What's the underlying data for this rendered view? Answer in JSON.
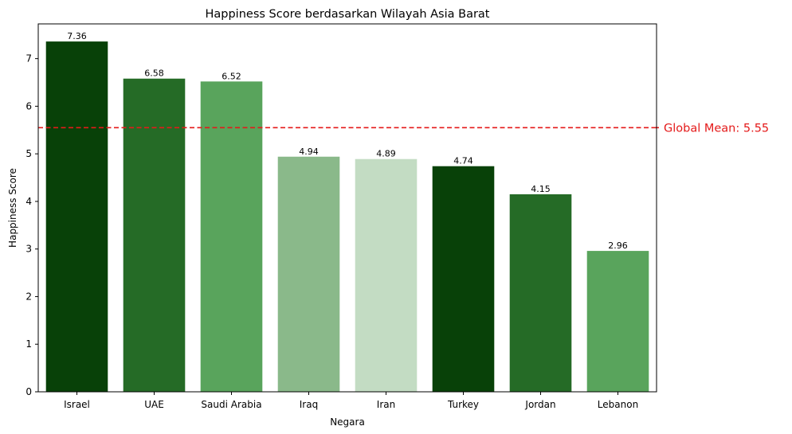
{
  "chart_data": {
    "type": "bar",
    "title": "Happiness Score berdasarkan Wilayah Asia Barat",
    "xlabel": "Negara",
    "ylabel": "Happiness Score",
    "categories": [
      "Israel",
      "UAE",
      "Saudi Arabia",
      "Iraq",
      "Iran",
      "Turkey",
      "Jordan",
      "Lebanon"
    ],
    "values": [
      7.36,
      6.58,
      6.52,
      4.94,
      4.89,
      4.74,
      4.15,
      2.96
    ],
    "value_labels": [
      "7.36",
      "6.58",
      "6.52",
      "4.94",
      "4.89",
      "4.74",
      "4.15",
      "2.96"
    ],
    "bar_colors": [
      "#084108",
      "#256b26",
      "#59a45c",
      "#8ab98a",
      "#c3dcc3",
      "#084108",
      "#256b26",
      "#59a45c"
    ],
    "ylim": [
      0,
      7.73
    ],
    "yticks": [
      0,
      1,
      2,
      3,
      4,
      5,
      6,
      7
    ],
    "grid": false,
    "reference_line": {
      "value": 5.55,
      "label": "Global Mean: 5.55",
      "color": "#e41a1a",
      "style": "dashed"
    }
  }
}
